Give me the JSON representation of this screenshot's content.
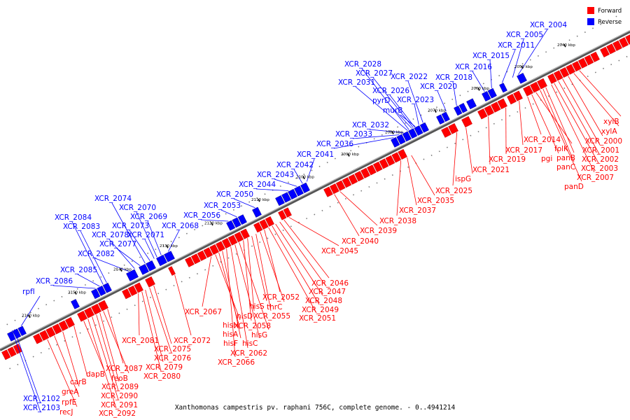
{
  "title": "Xanthomonas campestris pv. raphani 756C, complete genome. - 0..4941214",
  "legend": [
    {
      "label": "Forward",
      "color": "#ff0000"
    },
    {
      "label": "Reverse",
      "color": "#0000ff"
    }
  ],
  "colors": {
    "forward": "#ff0000",
    "reverse": "#0000ff",
    "backbone": "#888888"
  },
  "kbp_marks": [
    "2040 kbp",
    "2050 kbp",
    "2060 kbp",
    "2070 kbp",
    "2080 kbp",
    "2090 kbp",
    "2100 kbp",
    "2110 kbp",
    "2120 kbp",
    "2130 kbp",
    "2140 kbp",
    "2150 kbp",
    "2160 kbp"
  ],
  "reverse_genes": [
    "XCR_2004",
    "XCR_2005",
    "XCR_2011",
    "XCR_2015",
    "XCR_2016",
    "XCR_2018",
    "XCR_2020",
    "XCR_2022",
    "XCR_2023",
    "murB",
    "pyrD",
    "XCR_2026",
    "XCR_2027",
    "XCR_2028",
    "XCR_2031",
    "XCR_2032",
    "XCR_2033",
    "XCR_2036",
    "XCR_2041",
    "XCR_2042",
    "XCR_2043",
    "XCR_2044",
    "XCR_2050",
    "XCR_2053",
    "XCR_2056",
    "XCR_2068",
    "XCR_2069",
    "XCR_2070",
    "XCR_2071",
    "XCR_2073",
    "XCR_2074",
    "XCR_2077",
    "XCR_2078",
    "XCR_2082",
    "XCR_2083",
    "XCR_2084",
    "XCR_2085",
    "XCR_2086",
    "rpfI",
    "XCR_2102",
    "XCR_2103"
  ],
  "forward_genes": [
    "xylB",
    "xylA",
    "XCR_2000",
    "XCR_2001",
    "XCR_2002",
    "XCR_2003",
    "XCR_2007",
    "panB",
    "panC",
    "panD",
    "folK",
    "pgi",
    "XCR_2014",
    "XCR_2017",
    "XCR_2019",
    "XCR_2021",
    "ispG",
    "XCR_2025",
    "XCR_2035",
    "XCR_2037",
    "XCR_2038",
    "XCR_2039",
    "XCR_2040",
    "XCR_2045",
    "XCR_2046",
    "XCR_2047",
    "XCR_2048",
    "XCR_2049",
    "XCR_2051",
    "XCR_2052",
    "thrC",
    "XCR_2055",
    "hisS",
    "hisD",
    "XCR_2058",
    "hisG",
    "hisC",
    "XCR_2062",
    "XCR_2066",
    "hisF",
    "hisA",
    "hisH",
    "XCR_2067",
    "XCR_2072",
    "XCR_2075",
    "XCR_2076",
    "XCR_2079",
    "XCR_2080",
    "XCR_2081",
    "XCR_2087",
    "feoB",
    "XCR_2089",
    "XCR_2090",
    "XCR_2091",
    "XCR_2092",
    "dapB",
    "carB",
    "greA",
    "rpfE",
    "recJ"
  ]
}
